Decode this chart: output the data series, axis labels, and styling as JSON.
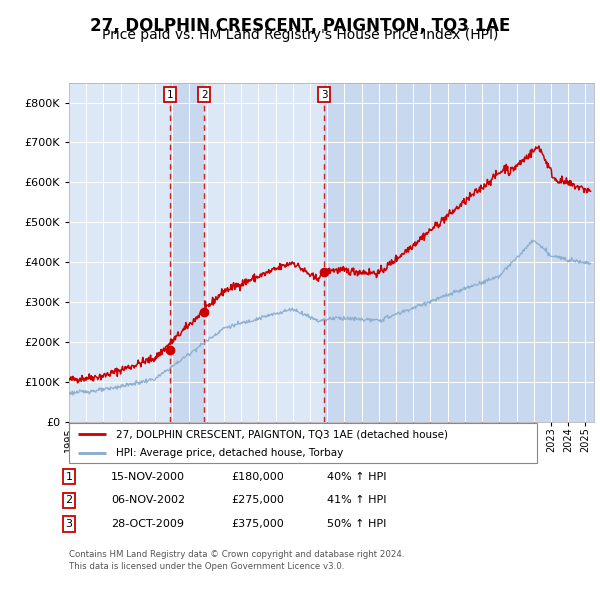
{
  "title": "27, DOLPHIN CRESCENT, PAIGNTON, TQ3 1AE",
  "subtitle": "Price paid vs. HM Land Registry's House Price Index (HPI)",
  "transactions": [
    {
      "num": 1,
      "date": "15-NOV-2000",
      "date_x": 2000.87,
      "price": 180000,
      "hpi_pct": "40% ↑ HPI"
    },
    {
      "num": 2,
      "date": "06-NOV-2002",
      "date_x": 2002.85,
      "price": 275000,
      "hpi_pct": "41% ↑ HPI"
    },
    {
      "num": 3,
      "date": "28-OCT-2009",
      "date_x": 2009.82,
      "price": 375000,
      "hpi_pct": "50% ↑ HPI"
    }
  ],
  "legend_line1": "27, DOLPHIN CRESCENT, PAIGNTON, TQ3 1AE (detached house)",
  "legend_line2": "HPI: Average price, detached house, Torbay",
  "footer1": "Contains HM Land Registry data © Crown copyright and database right 2024.",
  "footer2": "This data is licensed under the Open Government Licence v3.0.",
  "red_color": "#cc0000",
  "blue_color": "#88aacc",
  "chart_bg": "#dce8f5",
  "span_highlight": "#c8d8ee",
  "grid_color": "#ffffff",
  "ylim": [
    0,
    850000
  ],
  "xlim_start": 1995.0,
  "xlim_end": 2025.5,
  "title_fontsize": 12,
  "subtitle_fontsize": 10
}
